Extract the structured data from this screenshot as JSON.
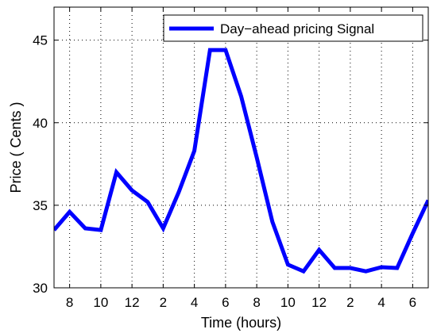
{
  "chart_data": {
    "type": "line",
    "xlabel": "Time (hours)",
    "ylabel": "Price ( Cents )",
    "xlim": [
      7,
      31
    ],
    "ylim": [
      30,
      47
    ],
    "grid": true,
    "legend_position": "top-right",
    "x_ticks": [
      {
        "value": 8,
        "label": "8"
      },
      {
        "value": 10,
        "label": "10"
      },
      {
        "value": 12,
        "label": "12"
      },
      {
        "value": 14,
        "label": "2"
      },
      {
        "value": 16,
        "label": "4"
      },
      {
        "value": 18,
        "label": "6"
      },
      {
        "value": 20,
        "label": "8"
      },
      {
        "value": 22,
        "label": "10"
      },
      {
        "value": 24,
        "label": "12"
      },
      {
        "value": 26,
        "label": "2"
      },
      {
        "value": 28,
        "label": "4"
      },
      {
        "value": 30,
        "label": "6"
      }
    ],
    "y_ticks": [
      {
        "value": 30,
        "label": "30"
      },
      {
        "value": 35,
        "label": "35"
      },
      {
        "value": 40,
        "label": "40"
      },
      {
        "value": 45,
        "label": "45"
      }
    ],
    "series": [
      {
        "name": "Day−ahead pricing Signal",
        "color": "#0000ff",
        "x": [
          7,
          8,
          9,
          10,
          11,
          12,
          13,
          14,
          15,
          16,
          17,
          18,
          19,
          20,
          21,
          22,
          23,
          24,
          25,
          26,
          27,
          28,
          29,
          30,
          31
        ],
        "y": [
          33.5,
          34.6,
          33.6,
          33.5,
          37.0,
          35.9,
          35.2,
          33.6,
          35.8,
          38.3,
          44.4,
          44.4,
          41.6,
          37.9,
          34.0,
          31.4,
          31.0,
          32.3,
          31.2,
          31.2,
          31.0,
          31.25,
          31.2,
          33.3,
          35.3
        ]
      }
    ]
  }
}
